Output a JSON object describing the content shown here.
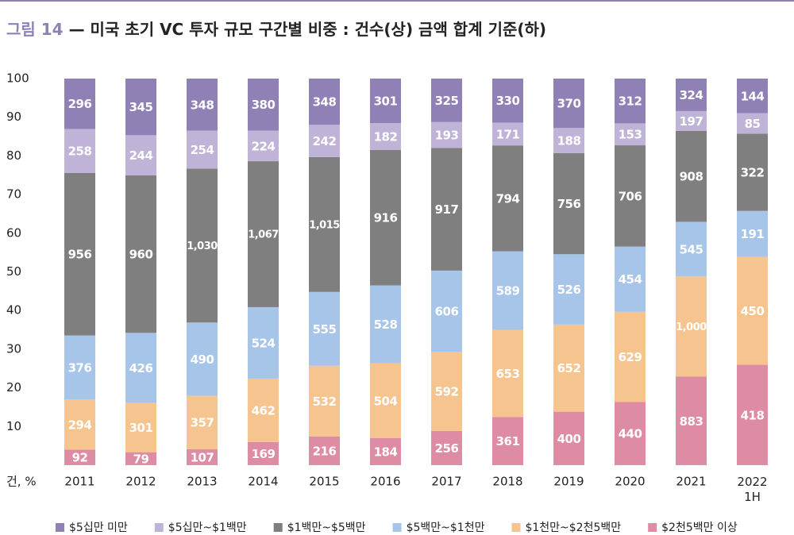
{
  "chart_data": {
    "type": "bar",
    "stack": "percent",
    "figure_label": "그림 14",
    "title": "— 미국 초기 VC 투자 규모 구간별 비중 : 건수(상) 금액 합계 기준(하)",
    "y_unit_label": "건, %",
    "categories": [
      "2011",
      "2012",
      "2013",
      "2014",
      "2015",
      "2016",
      "2017",
      "2018",
      "2019",
      "2020",
      "2021",
      "2022\n1H"
    ],
    "ylim": [
      0,
      100
    ],
    "yticks": [
      10,
      20,
      30,
      40,
      50,
      60,
      70,
      80,
      90,
      100
    ],
    "grid": false,
    "legend": "bottom",
    "series": [
      {
        "name": "$5십만 미만",
        "color": "#8f80b5",
        "values": [
          296,
          345,
          348,
          380,
          348,
          301,
          325,
          330,
          370,
          312,
          324,
          144
        ],
        "value_labels": [
          "296",
          "345",
          "348",
          "380",
          "348",
          "301",
          "325",
          "330",
          "370",
          "312",
          "324",
          "144"
        ]
      },
      {
        "name": "$5십만~$1백만",
        "color": "#bfb4d7",
        "values": [
          258,
          244,
          254,
          224,
          242,
          182,
          193,
          171,
          188,
          153,
          197,
          85
        ],
        "value_labels": [
          "258",
          "244",
          "254",
          "224",
          "242",
          "182",
          "193",
          "171",
          "188",
          "153",
          "197",
          "85"
        ]
      },
      {
        "name": "$1백만~$5백만",
        "color": "#7f7f7f",
        "values": [
          956,
          960,
          1030,
          1067,
          1015,
          916,
          917,
          794,
          756,
          706,
          908,
          322
        ],
        "value_labels": [
          "956",
          "960",
          "1,030",
          "1,067",
          "1,015",
          "916",
          "917",
          "794",
          "756",
          "706",
          "908",
          "322"
        ]
      },
      {
        "name": "$5백만~$1천만",
        "color": "#a7c4e9",
        "values": [
          376,
          426,
          490,
          524,
          555,
          528,
          606,
          589,
          526,
          454,
          545,
          191
        ],
        "value_labels": [
          "376",
          "426",
          "490",
          "524",
          "555",
          "528",
          "606",
          "589",
          "526",
          "454",
          "545",
          "191"
        ]
      },
      {
        "name": "$1천만~$2천5백만",
        "color": "#f6c48f",
        "values": [
          294,
          301,
          357,
          462,
          532,
          504,
          592,
          653,
          652,
          629,
          1000,
          450
        ],
        "value_labels": [
          "294",
          "301",
          "357",
          "462",
          "532",
          "504",
          "592",
          "653",
          "652",
          "629",
          "1,000",
          "450"
        ]
      },
      {
        "name": "$2천5백만 이상",
        "color": "#de8ba4",
        "values": [
          92,
          79,
          107,
          169,
          216,
          184,
          256,
          361,
          400,
          440,
          883,
          418
        ],
        "value_labels": [
          "92",
          "79",
          "107",
          "169",
          "216",
          "184",
          "256",
          "361",
          "400",
          "440",
          "883",
          "418"
        ]
      }
    ]
  }
}
